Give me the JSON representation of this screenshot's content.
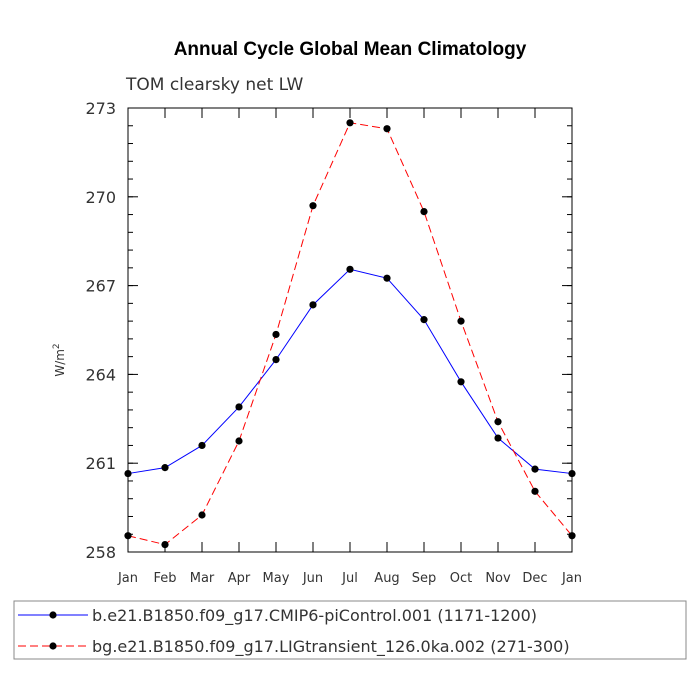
{
  "chart_data": {
    "type": "line",
    "title": "Annual Cycle Global Mean Climatology",
    "subtitle": "TOM clearsky net LW",
    "xlabel": "",
    "ylabel": "W/m",
    "ylabel_sup": "2",
    "categories": [
      "Jan",
      "Feb",
      "Mar",
      "Apr",
      "May",
      "Jun",
      "Jul",
      "Aug",
      "Sep",
      "Oct",
      "Nov",
      "Dec",
      "Jan"
    ],
    "ylim": [
      258,
      273
    ],
    "yticks": [
      258,
      261,
      264,
      267,
      270,
      273
    ],
    "legend_placement": "bottom",
    "grid": false,
    "series": [
      {
        "name": "b.e21.B1850.f09_g17.CMIP6-piControl.001 (1171-1200)",
        "color": "#0000ff",
        "dash": "solid",
        "values": [
          260.65,
          260.85,
          261.6,
          262.9,
          264.5,
          266.35,
          267.55,
          267.25,
          265.85,
          263.75,
          261.85,
          260.8,
          260.65
        ]
      },
      {
        "name": "bg.e21.B1850.f09_g17.LIGtransient_126.0ka.002 (271-300)",
        "color": "#ff0000",
        "dash": "dashed",
        "values": [
          258.55,
          258.25,
          259.25,
          261.75,
          265.35,
          269.7,
          272.5,
          272.3,
          269.5,
          265.8,
          262.4,
          260.05,
          258.55
        ]
      }
    ]
  }
}
